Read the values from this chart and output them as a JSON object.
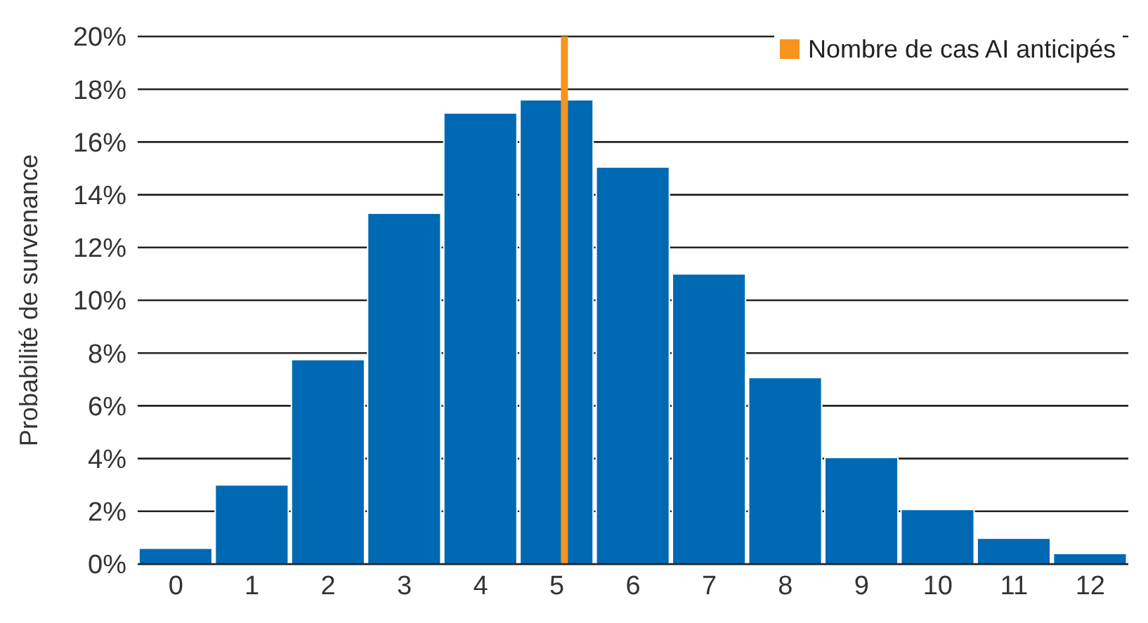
{
  "chart_data": {
    "type": "bar",
    "ylabel": "Probabilité de survenance",
    "x": [
      0,
      1,
      2,
      3,
      4,
      5,
      6,
      7,
      8,
      9,
      10,
      11,
      12
    ],
    "series": [
      {
        "color": "#0069b4",
        "values": [
          0.6,
          3.0,
          7.75,
          13.3,
          17.1,
          17.6,
          15.05,
          11.0,
          7.07,
          4.04,
          2.07,
          0.98,
          0.4
        ]
      },
      {
        "type": "line",
        "name": "Nombre de cas AI anticipés",
        "color": "#f7941d",
        "x": [
          5.1,
          5.1
        ],
        "values": [
          0,
          20
        ]
      }
    ],
    "xlim": [
      -0.5,
      12.5
    ],
    "xticks": [
      0,
      1,
      2,
      3,
      4,
      5,
      6,
      7,
      8,
      9,
      10,
      11,
      12
    ],
    "ylim": [
      0,
      20
    ],
    "yticks": [
      {
        "value": 0,
        "label": "0%"
      },
      {
        "value": 2,
        "label": "2%"
      },
      {
        "value": 4,
        "label": "4%"
      },
      {
        "value": 6,
        "label": "6%"
      },
      {
        "value": 8,
        "label": "8%"
      },
      {
        "value": 10,
        "label": "10%"
      },
      {
        "value": 12,
        "label": "12%"
      },
      {
        "value": 14,
        "label": "14%"
      },
      {
        "value": 16,
        "label": "16%"
      },
      {
        "value": 18,
        "label": "18%"
      },
      {
        "value": 20,
        "label": "20%"
      }
    ],
    "grid": "y",
    "legend": "top right"
  }
}
